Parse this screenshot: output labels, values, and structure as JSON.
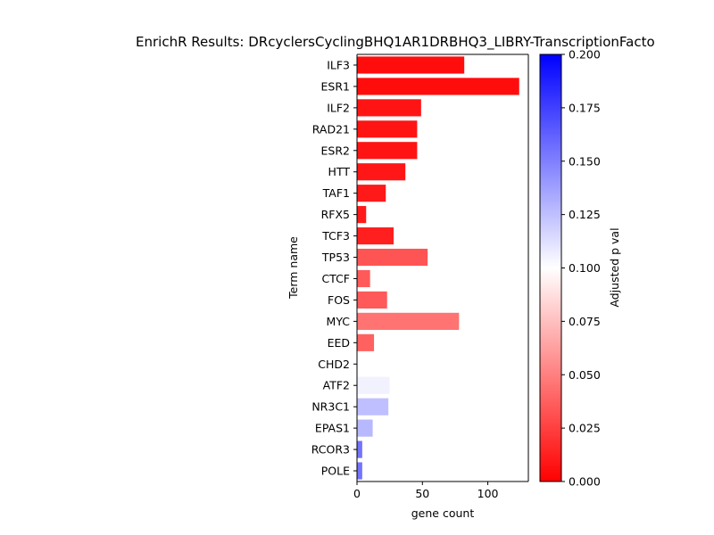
{
  "chart_data": {
    "type": "bar",
    "orientation": "horizontal",
    "title": "EnrichR Results: DRcyclersCyclingBHQ1AR1DRBHQ3_LIBRY-TranscriptionFacto",
    "xlabel": "gene count",
    "ylabel": "Term name",
    "xlim": [
      0,
      131
    ],
    "xticks": [
      0,
      50,
      100
    ],
    "grid": false,
    "categories": [
      "ILF3",
      "ESR1",
      "ILF2",
      "RAD21",
      "ESR2",
      "HTT",
      "TAF1",
      "RFX5",
      "TCF3",
      "TP53",
      "CTCF",
      "FOS",
      "MYC",
      "EED",
      "CHD2",
      "ATF2",
      "NR3C1",
      "EPAS1",
      "RCOR3",
      "POLE"
    ],
    "values": [
      82,
      124,
      49,
      46,
      46,
      37,
      22,
      7,
      28,
      54,
      10,
      23,
      78,
      13,
      1,
      25,
      24,
      12,
      4,
      4
    ],
    "adjusted_p_values": [
      0.005,
      0.005,
      0.008,
      0.008,
      0.008,
      0.009,
      0.01,
      0.01,
      0.012,
      0.033,
      0.035,
      0.035,
      0.045,
      0.038,
      0.1,
      0.105,
      0.125,
      0.128,
      0.155,
      0.155
    ],
    "colorbar": {
      "label": "Adjusted p val",
      "range": [
        0,
        0.2
      ],
      "ticks": [
        "0.000",
        "0.025",
        "0.050",
        "0.075",
        "0.100",
        "0.125",
        "0.150",
        "0.175",
        "0.200"
      ],
      "colors": {
        "low": "#ff0000",
        "mid": "#ffffff",
        "high": "#0000ff"
      }
    }
  }
}
